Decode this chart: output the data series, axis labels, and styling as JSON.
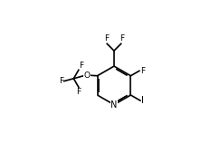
{
  "bg_color": "#ffffff",
  "line_color": "#000000",
  "text_color": "#000000",
  "font_size": 6.5,
  "line_width": 1.2,
  "figsize": [
    2.22,
    1.58
  ],
  "dpi": 100,
  "xlim": [
    0.0,
    1.0
  ],
  "ylim": [
    0.0,
    1.0
  ]
}
